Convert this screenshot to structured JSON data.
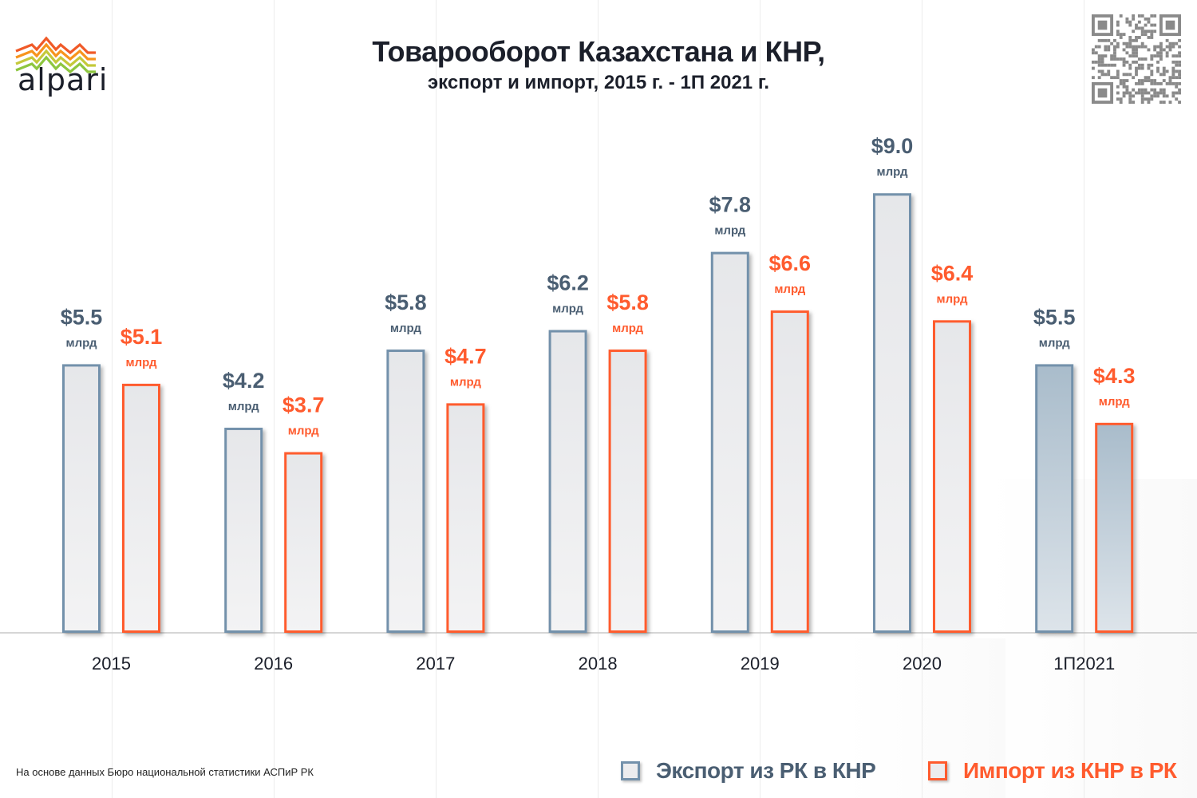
{
  "brand": {
    "name": "alpari"
  },
  "header": {
    "title": "Товарооборот Казахстана и КНР,",
    "subtitle": "экспорт и импорт, 2015 г. - 1П 2021 г."
  },
  "footer": {
    "source": "На основе данных Бюро национальной статистики АСПиР РК"
  },
  "colors": {
    "export": "#7391ab",
    "export_text": "#4a5e72",
    "import": "#ff5b2e",
    "bar_fill": "#ececee",
    "bar_fill_highlight": "#aebfcd",
    "axis": "#c8c8c8",
    "title": "#1b1f2a",
    "qr": "#8a8a8a"
  },
  "chart_data": {
    "type": "bar",
    "title": "Товарооборот Казахстана и КНР, экспорт и импорт, 2015 г. - 1П 2021 г.",
    "xlabel": "",
    "ylabel": "",
    "unit_label": "млрд",
    "ylim": [
      0,
      9.0
    ],
    "grid": false,
    "legend_position": "bottom-right",
    "categories": [
      "2015",
      "2016",
      "2017",
      "2018",
      "2019",
      "2020",
      "1П2021"
    ],
    "series": [
      {
        "name": "Экспорт из РК в КНР",
        "values": [
          5.5,
          4.2,
          5.8,
          6.2,
          7.8,
          9.0,
          5.5
        ],
        "labels": [
          "$5.5",
          "$4.2",
          "$5.8",
          "$6.2",
          "$7.8",
          "$9.0",
          "$5.5"
        ]
      },
      {
        "name": "Импорт из КНР в РК",
        "values": [
          5.1,
          3.7,
          4.7,
          5.8,
          6.6,
          6.4,
          4.3
        ],
        "labels": [
          "$5.1",
          "$3.7",
          "$4.7",
          "$5.8",
          "$6.6",
          "$6.4",
          "$4.3"
        ]
      }
    ],
    "highlighted_category": "1П2021"
  }
}
